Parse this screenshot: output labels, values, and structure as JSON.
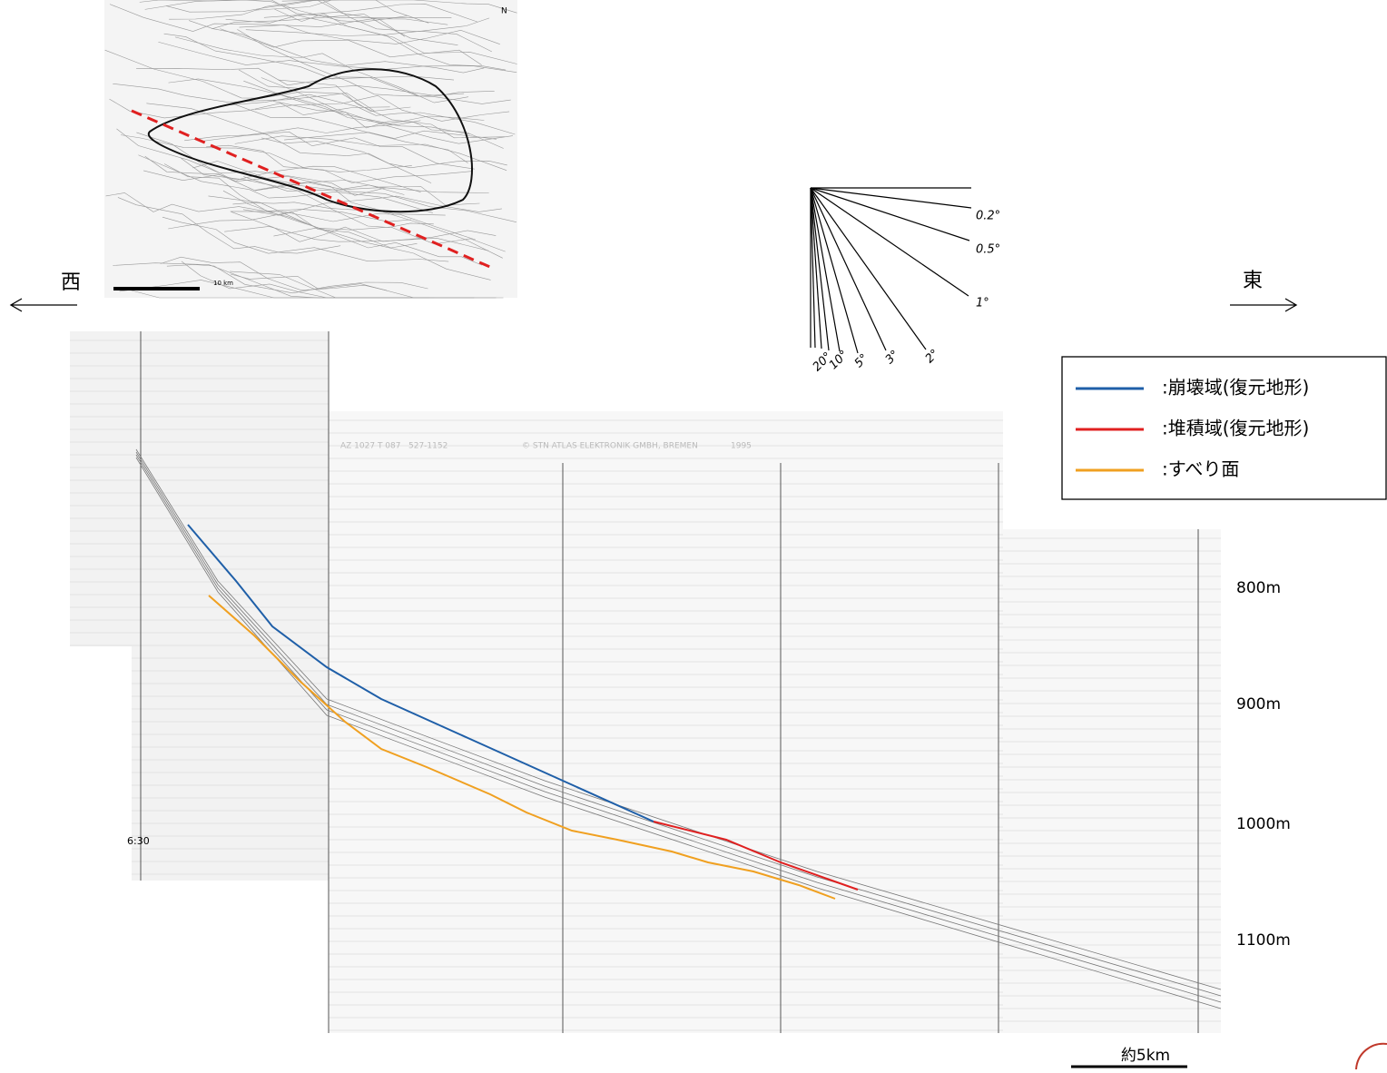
{
  "map": {
    "north": "N",
    "scale": "10 km"
  },
  "directions": {
    "west": "西",
    "east": "東"
  },
  "angles": [
    "0.2°",
    "0.5°",
    "1°",
    "2°",
    "3°",
    "5°",
    "10°",
    "20°"
  ],
  "legend": [
    {
      "label": ":崩壊域(復元地形)",
      "color": "#1f5fa8"
    },
    {
      "label": ":堆積域(復元地形)",
      "color": "#e02020"
    },
    {
      "label": ":すべり面",
      "color": "#f0a020"
    }
  ],
  "depths": [
    "800m",
    "900m",
    "1000m",
    "1100m"
  ],
  "scale_bar": "約5km",
  "time": "6:30",
  "record": {
    "maker": "© STN ATLAS ELEKTRONIK GMBH, BREMEN",
    "year": "1995",
    "code": "AZ 1027 T 087",
    "range": "527-1152"
  }
}
